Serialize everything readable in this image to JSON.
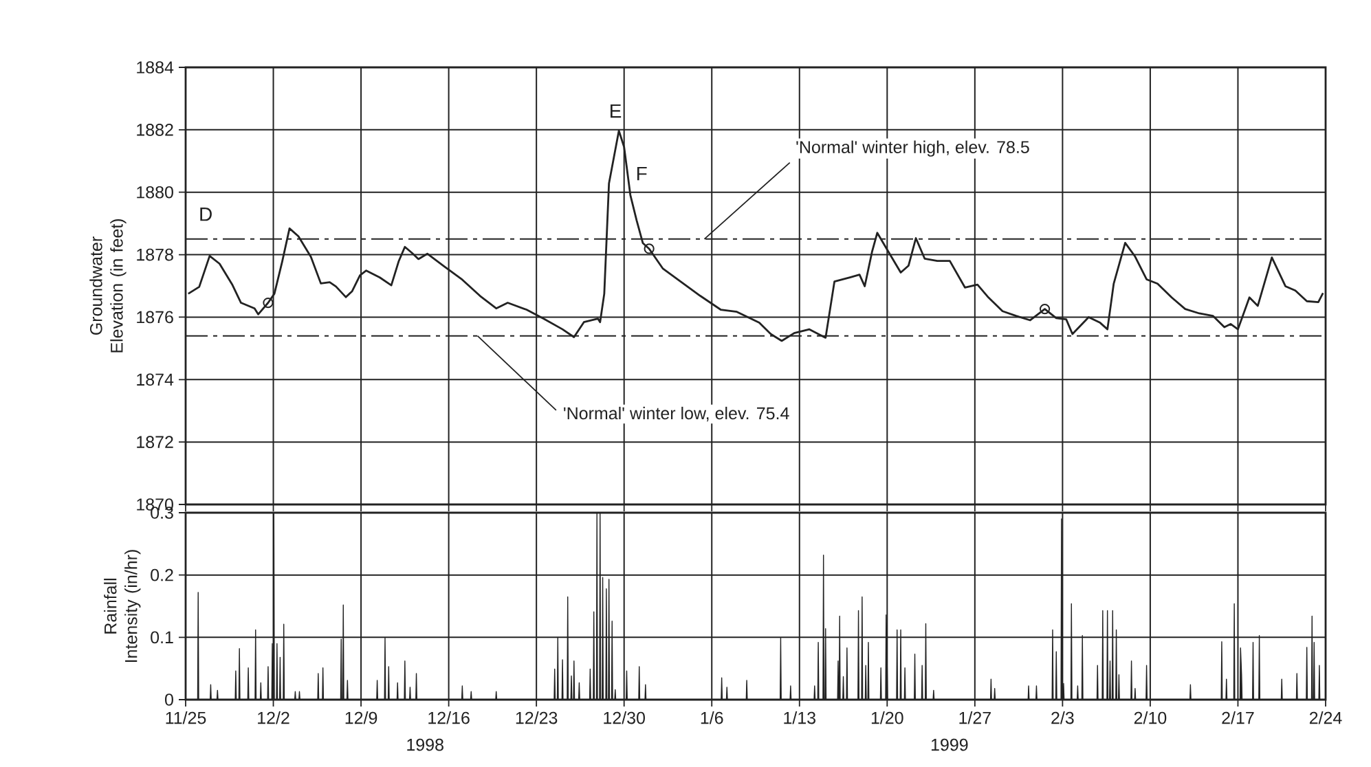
{
  "chart_data": [
    {
      "type": "line",
      "ylabel": "Groundwater Elevation (in feet)",
      "xlim": [
        "1998-11-25",
        "1999-02-24"
      ],
      "xticks": [
        {
          "value": "1998-11-25",
          "label": null
        },
        {
          "value": "1998-12-02",
          "label": null
        },
        {
          "value": "1998-12-09",
          "label": null
        },
        {
          "value": "1998-12-16",
          "label": null
        },
        {
          "value": "1998-12-23",
          "label": null
        },
        {
          "value": "1998-12-30",
          "label": null
        },
        {
          "value": "1999-01-06",
          "label": null
        },
        {
          "value": "1999-01-13",
          "label": null
        },
        {
          "value": "1999-01-20",
          "label": null
        },
        {
          "value": "1999-01-27",
          "label": null
        },
        {
          "value": "1999-02-03",
          "label": null
        },
        {
          "value": "1999-02-10",
          "label": null
        },
        {
          "value": "1999-02-17",
          "label": null
        },
        {
          "value": "1999-02-24",
          "label": null
        }
      ],
      "ylim": [
        1870,
        1884
      ],
      "yticks": [
        1870,
        1872,
        1874,
        1876,
        1878,
        1880,
        1882,
        1884
      ],
      "tick_labels": "y",
      "grid": true,
      "line_style": "solid",
      "series": [
        {
          "color": "#222222",
          "x": [
            "1998-11-25T05:00",
            "1998-11-26T02:00",
            "1998-11-26T22:00",
            "1998-11-27T17:00",
            "1998-11-28T17:00",
            "1998-11-29T10:00",
            "1998-11-30T12:00",
            "1998-11-30T19:00",
            "1998-12-01T14:00",
            "1998-12-02T02:00",
            "1998-12-02T17:00",
            "1998-12-03T07:00",
            "1998-12-04T00:00",
            "1998-12-05T00:00",
            "1998-12-05T19:00",
            "1998-12-06T12:00",
            "1998-12-07T00:00",
            "1998-12-07T19:00",
            "1998-12-08T07:00",
            "1998-12-08T22:00",
            "1998-12-09T10:00",
            "1998-12-10T12:00",
            "1998-12-11T10:00",
            "1998-12-12T00:00",
            "1998-12-12T12:00",
            "1998-12-13T02:00",
            "1998-12-13T14:00",
            "1998-12-14T07:00",
            "1998-12-15T14:00",
            "1998-12-17T02:00",
            "1998-12-18T12:00",
            "1998-12-19T19:00",
            "1998-12-20T17:00",
            "1998-12-22T05:00",
            "1998-12-23T14:00",
            "1998-12-25T02:00",
            "1998-12-26T00:00",
            "1998-12-26T19:00",
            "1998-12-27T22:00",
            "1998-12-28T02:00",
            "1998-12-28T10:00",
            "1998-12-28T19:00",
            "1998-12-29T14:00",
            "1998-12-30T00:00",
            "1998-12-30T12:00",
            "1998-12-31T00:00",
            "1998-12-31T12:00",
            "1999-01-01T00:00",
            "1999-01-02T02:00",
            "1999-01-03T14:00",
            "1999-01-05T02:00",
            "1999-01-06T17:00",
            "1999-01-08T00:00",
            "1999-01-09T19:00",
            "1999-01-10T17:00",
            "1999-01-11T14:00",
            "1999-01-12T14:00",
            "1999-01-13T19:00",
            "1999-01-15T02:00",
            "1999-01-15T19:00",
            "1999-01-17T02:00",
            "1999-01-17T19:00",
            "1999-01-18T05:00",
            "1999-01-18T19:00",
            "1999-01-19T05:00",
            "1999-01-20T00:00",
            "1999-01-21T02:00",
            "1999-01-21T17:00",
            "1999-01-22T07:00",
            "1999-01-23T00:00",
            "1999-01-24T00:00",
            "1999-01-25T00:00",
            "1999-01-26T05:00",
            "1999-01-27T05:00",
            "1999-01-28T02:00",
            "1999-01-29T05:00",
            "1999-01-30T07:00",
            "1999-01-31T10:00",
            "1999-02-01T14:00",
            "1999-02-02T12:00",
            "1999-02-03T07:00",
            "1999-02-03T19:00",
            "1999-02-05T02:00",
            "1999-02-06T00:00",
            "1999-02-06T14:00",
            "1999-02-07T02:00",
            "1999-02-08T00:00",
            "1999-02-08T19:00",
            "1999-02-09T17:00",
            "1999-02-10T14:00",
            "1999-02-11T17:00",
            "1999-02-12T19:00",
            "1999-02-13T22:00",
            "1999-02-15T00:00",
            "1999-02-15T22:00",
            "1999-02-16T10:00",
            "1999-02-17T00:00",
            "1999-02-17T22:00",
            "1999-02-18T14:00",
            "1999-02-19T17:00",
            "1999-02-20T19:00",
            "1999-02-21T14:00",
            "1999-02-22T12:00",
            "1999-02-23T10:00",
            "1999-02-23T19:00"
          ],
          "values": [
            1876.75,
            1876.97,
            1877.96,
            1877.71,
            1877.05,
            1876.46,
            1876.28,
            1876.09,
            1876.46,
            1876.75,
            1877.78,
            1878.84,
            1878.59,
            1877.93,
            1877.08,
            1877.12,
            1876.98,
            1876.64,
            1876.83,
            1877.34,
            1877.49,
            1877.27,
            1877.02,
            1877.78,
            1878.25,
            1878.05,
            1877.86,
            1878.03,
            1877.64,
            1877.2,
            1876.68,
            1876.28,
            1876.46,
            1876.24,
            1875.95,
            1875.61,
            1875.36,
            1875.84,
            1875.95,
            1875.84,
            1876.75,
            1880.28,
            1881.97,
            1881.45,
            1879.91,
            1879.1,
            1878.37,
            1878.19,
            1877.56,
            1877.12,
            1876.68,
            1876.24,
            1876.17,
            1875.82,
            1875.46,
            1875.24,
            1875.49,
            1875.61,
            1875.34,
            1877.14,
            1877.28,
            1877.36,
            1876.99,
            1878.09,
            1878.7,
            1878.16,
            1877.43,
            1877.65,
            1878.53,
            1877.87,
            1877.8,
            1877.8,
            1876.95,
            1877.04,
            1876.63,
            1876.19,
            1876.04,
            1875.9,
            1876.26,
            1875.97,
            1875.93,
            1875.46,
            1876.0,
            1875.82,
            1875.61,
            1877.07,
            1878.38,
            1877.94,
            1877.21,
            1877.07,
            1876.63,
            1876.26,
            1876.12,
            1876.04,
            1875.68,
            1875.78,
            1875.61,
            1876.63,
            1876.36,
            1877.91,
            1876.99,
            1876.85,
            1876.51,
            1876.48,
            1876.77
          ]
        },
        {
          "type": "scatter",
          "marker": "circle",
          "color": "#222222",
          "x": [
            "1998-12-01T14:00",
            "1999-01-01T00:00",
            "1999-02-01T14:00"
          ],
          "values": [
            1876.46,
            1878.19,
            1876.26
          ]
        }
      ],
      "ref_lines": [
        {
          "axis": "y",
          "value": 1878.5,
          "label": "'Normal' winter high, elev. 78.5",
          "line_style": "dashed",
          "color": "#222222"
        },
        {
          "axis": "y",
          "value": 1875.4,
          "label": "'Normal' winter low, elev. 75.4",
          "line_style": "dashed",
          "color": "#222222"
        }
      ],
      "annotations": [
        "D",
        "E",
        "F"
      ]
    },
    {
      "type": "area",
      "ylabel": "Rainfall Intensity (in/hr)",
      "xlim": [
        "1998-11-25",
        "1999-02-24"
      ],
      "xticks": [
        {
          "value": "1998-11-25",
          "label": "11/25"
        },
        {
          "value": "1998-12-02",
          "label": "12/2"
        },
        {
          "value": "1998-12-09",
          "label": "12/9"
        },
        {
          "value": "1998-12-16",
          "label": "12/16"
        },
        {
          "value": "1998-12-23",
          "label": "12/23"
        },
        {
          "value": "1998-12-30",
          "label": "12/30"
        },
        {
          "value": "1999-01-06",
          "label": "1/6"
        },
        {
          "value": "1999-01-13",
          "label": "1/13"
        },
        {
          "value": "1999-01-20",
          "label": "1/20"
        },
        {
          "value": "1999-01-27",
          "label": "1/27"
        },
        {
          "value": "1999-02-03",
          "label": "2/3"
        },
        {
          "value": "1999-02-10",
          "label": "2/10"
        },
        {
          "value": "1999-02-17",
          "label": "2/17"
        },
        {
          "value": "1999-02-24",
          "label": "2/24"
        }
      ],
      "ylim": [
        0,
        0.3
      ],
      "yticks": [
        0,
        0.1,
        0.2,
        0.3
      ],
      "grid": true,
      "series": [
        {
          "color": "#222222",
          "x": [
            "1998-11-25T23:00",
            "1998-11-26T00:00",
            "1998-11-26T01:00",
            "1998-11-26T23:00",
            "1998-11-27T00:00",
            "1998-11-27T01:00",
            "1998-11-27T12:00",
            "1998-11-27T13:00",
            "1998-11-27T14:00",
            "1998-11-28T23:00",
            "1998-11-29T00:00",
            "1998-11-29T01:00",
            "1998-11-29T06:00",
            "1998-11-29T07:00",
            "1998-11-29T08:00",
            "1998-11-29T23:00",
            "1998-11-30T00:00",
            "1998-11-30T01:00",
            "1998-11-30T13:00",
            "1998-11-30T14:00",
            "1998-11-30T15:00",
            "1998-11-30T23:00",
            "1998-12-01T00:00",
            "1998-12-01T01:00",
            "1998-12-01T13:00",
            "1998-12-01T14:00",
            "1998-12-01T15:00",
            "1998-12-01T21:00",
            "1998-12-01T22:00",
            "1998-12-01T23:00",
            "1998-12-02T00:00",
            "1998-12-02T01:00",
            "1998-12-02T02:00",
            "1998-12-02T06:00",
            "1998-12-02T07:00",
            "1998-12-02T08:00",
            "1998-12-02T12:00",
            "1998-12-02T13:00",
            "1998-12-02T14:00",
            "1998-12-02T19:00",
            "1998-12-02T20:00",
            "1998-12-02T21:00",
            "1998-12-03T17:00",
            "1998-12-03T18:00",
            "1998-12-03T19:00",
            "1998-12-04T01:00",
            "1998-12-04T02:00",
            "1998-12-04T03:00",
            "1998-12-05T13:00",
            "1998-12-05T14:00",
            "1998-12-05T15:00",
            "1998-12-05T22:00",
            "1998-12-05T23:00",
            "1998-12-06T00:00",
            "1998-12-07T09:00",
            "1998-12-07T10:00",
            "1998-12-07T11:00",
            "1998-12-07T13:00",
            "1998-12-07T14:00",
            "1998-12-07T15:00",
            "1998-12-07T21:00",
            "1998-12-07T22:00",
            "1998-12-07T23:00",
            "1998-12-10T06:00",
            "1998-12-10T07:00",
            "1998-12-10T08:00",
            "1998-12-10T21:00",
            "1998-12-10T22:00",
            "1998-12-10T23:00",
            "1998-12-11T04:00",
            "1998-12-11T05:00",
            "1998-12-11T06:00",
            "1998-12-11T21:00",
            "1998-12-11T22:00",
            "1998-12-11T23:00",
            "1998-12-12T11:00",
            "1998-12-12T12:00",
            "1998-12-12T13:00",
            "1998-12-12T21:00",
            "1998-12-12T22:00",
            "1998-12-12T23:00",
            "1998-12-13T09:00",
            "1998-12-13T10:00",
            "1998-12-13T11:00",
            "1998-12-17T01:00",
            "1998-12-17T02:00",
            "1998-12-17T03:00",
            "1998-12-17T18:00",
            "1998-12-17T19:00",
            "1998-12-17T20:00",
            "1998-12-19T18:00",
            "1998-12-19T19:00",
            "1998-12-19T20:00",
            "1998-12-24T10:00",
            "1998-12-24T11:00",
            "1998-12-24T12:00",
            "1998-12-24T16:00",
            "1998-12-24T17:00",
            "1998-12-24T18:00",
            "1998-12-25T01:00",
            "1998-12-25T02:00",
            "1998-12-25T03:00",
            "1998-12-25T11:00",
            "1998-12-25T12:00",
            "1998-12-25T13:00",
            "1998-12-25T18:00",
            "1998-12-25T19:00",
            "1998-12-25T20:00",
            "1998-12-25T23:00",
            "1998-12-26T00:00",
            "1998-12-26T01:00",
            "1998-12-26T09:00",
            "1998-12-26T10:00",
            "1998-12-26T11:00",
            "1998-12-27T06:00",
            "1998-12-27T07:00",
            "1998-12-27T08:00",
            "1998-12-27T13:00",
            "1998-12-27T14:00",
            "1998-12-27T15:00",
            "1998-12-27T19:00",
            "1998-12-27T20:00",
            "1998-12-27T21:00",
            "1998-12-28T01:00",
            "1998-12-28T02:00",
            "1998-12-28T03:00",
            "1998-12-28T06:00",
            "1998-12-28T07:00",
            "1998-12-28T08:00",
            "1998-12-28T13:00",
            "1998-12-28T14:00",
            "1998-12-28T15:00",
            "1998-12-28T18:00",
            "1998-12-28T19:00",
            "1998-12-28T20:00",
            "1998-12-29T00:00",
            "1998-12-29T01:00",
            "1998-12-29T02:00",
            "1998-12-29T06:00",
            "1998-12-29T07:00",
            "1998-12-29T08:00",
            "1998-12-30T04:00",
            "1998-12-30T05:00",
            "1998-12-30T06:00",
            "1998-12-31T04:00",
            "1998-12-31T05:00",
            "1998-12-31T06:00",
            "1998-12-31T16:00",
            "1998-12-31T17:00",
            "1998-12-31T18:00",
            "1999-01-06T18:00",
            "1999-01-06T19:00",
            "1999-01-06T20:00",
            "1999-01-07T04:00",
            "1999-01-07T05:00",
            "1999-01-07T06:00",
            "1999-01-08T18:00",
            "1999-01-08T19:00",
            "1999-01-08T20:00",
            "1999-01-11T11:00",
            "1999-01-11T12:00",
            "1999-01-11T13:00",
            "1999-01-12T06:00",
            "1999-01-12T07:00",
            "1999-01-12T08:00",
            "1999-01-14T04:00",
            "1999-01-14T05:00",
            "1999-01-14T06:00",
            "1999-01-14T11:00",
            "1999-01-14T12:00",
            "1999-01-14T13:00",
            "1999-01-14T21:00",
            "1999-01-14T22:00",
            "1999-01-14T23:00",
            "1999-01-15T01:00",
            "1999-01-15T02:00",
            "1999-01-15T03:00",
            "1999-01-16T01:00",
            "1999-01-16T02:00",
            "1999-01-16T03:00",
            "1999-01-16T04:00",
            "1999-01-16T05:00",
            "1999-01-16T06:00",
            "1999-01-16T11:00",
            "1999-01-16T12:00",
            "1999-01-16T13:00",
            "1999-01-16T18:00",
            "1999-01-16T19:00",
            "1999-01-16T20:00",
            "1999-01-17T16:00",
            "1999-01-17T17:00",
            "1999-01-17T18:00",
            "1999-01-17T23:00",
            "1999-01-18T00:00",
            "1999-01-18T01:00",
            "1999-01-18T06:00",
            "1999-01-18T07:00",
            "1999-01-18T08:00",
            "1999-01-18T11:00",
            "1999-01-18T12:00",
            "1999-01-18T13:00",
            "1999-01-19T11:00",
            "1999-01-19T12:00",
            "1999-01-19T13:00",
            "1999-01-19T21:00",
            "1999-01-19T22:00",
            "1999-01-20T00:00",
            "1999-01-20T01:00",
            "1999-01-20T18:00",
            "1999-01-20T19:00",
            "1999-01-20T20:00",
            "1999-01-21T01:00",
            "1999-01-21T02:00",
            "1999-01-21T03:00",
            "1999-01-21T09:00",
            "1999-01-21T10:00",
            "1999-01-21T11:00",
            "1999-01-22T04:00",
            "1999-01-22T05:00",
            "1999-01-22T06:00",
            "1999-01-22T18:00",
            "1999-01-22T19:00",
            "1999-01-22T20:00",
            "1999-01-23T01:00",
            "1999-01-23T02:00",
            "1999-01-23T03:00",
            "1999-01-23T16:00",
            "1999-01-23T17:00",
            "1999-01-23T18:00",
            "1999-01-28T06:00",
            "1999-01-28T07:00",
            "1999-01-28T08:00",
            "1999-01-28T13:00",
            "1999-01-28T14:00",
            "1999-01-28T15:00",
            "1999-01-31T06:00",
            "1999-01-31T07:00",
            "1999-01-31T08:00",
            "1999-01-31T21:00",
            "1999-01-31T22:00",
            "1999-01-31T23:00",
            "1999-02-02T04:00",
            "1999-02-02T05:00",
            "1999-02-02T06:00",
            "1999-02-02T11:00",
            "1999-02-02T12:00",
            "1999-02-02T13:00",
            "1999-02-02T21:00",
            "1999-02-02T22:00",
            "1999-02-02T23:00",
            "1999-02-03T01:00",
            "1999-02-03T02:00",
            "1999-02-03T03:00",
            "1999-02-03T16:00",
            "1999-02-03T17:00",
            "1999-02-03T18:00",
            "1999-02-04T04:00",
            "1999-02-04T05:00",
            "1999-02-04T06:00",
            "1999-02-04T13:00",
            "1999-02-04T14:00",
            "1999-02-04T15:00",
            "1999-02-05T18:00",
            "1999-02-05T19:00",
            "1999-02-05T20:00",
            "1999-02-06T04:00",
            "1999-02-06T05:00",
            "1999-02-06T06:00",
            "1999-02-06T13:00",
            "1999-02-06T14:00",
            "1999-02-06T15:00",
            "1999-02-06T18:00",
            "1999-02-06T19:00",
            "1999-02-06T20:00",
            "1999-02-06T23:00",
            "1999-02-07T00:00",
            "1999-02-07T01:00",
            "1999-02-07T06:00",
            "1999-02-07T07:00",
            "1999-02-07T08:00",
            "1999-02-07T11:00",
            "1999-02-07T12:00",
            "1999-02-07T13:00",
            "1999-02-08T11:00",
            "1999-02-08T12:00",
            "1999-02-08T13:00",
            "1999-02-08T18:00",
            "1999-02-08T19:00",
            "1999-02-08T20:00",
            "1999-02-09T16:00",
            "1999-02-09T17:00",
            "1999-02-09T18:00",
            "1999-02-13T04:00",
            "1999-02-13T05:00",
            "1999-02-13T06:00",
            "1999-02-15T16:00",
            "1999-02-15T17:00",
            "1999-02-15T18:00",
            "1999-02-16T01:00",
            "1999-02-16T02:00",
            "1999-02-16T03:00",
            "1999-02-16T16:00",
            "1999-02-16T17:00",
            "1999-02-16T18:00",
            "1999-02-17T04:00",
            "1999-02-17T05:00",
            "1999-02-17T07:00",
            "1999-02-17T08:00",
            "1999-02-18T04:00",
            "1999-02-18T05:00",
            "1999-02-18T06:00",
            "1999-02-18T16:00",
            "1999-02-18T17:00",
            "1999-02-18T18:00",
            "1999-02-20T11:00",
            "1999-02-20T12:00",
            "1999-02-20T13:00",
            "1999-02-21T16:00",
            "1999-02-21T17:00",
            "1999-02-21T18:00",
            "1999-02-22T11:00",
            "1999-02-22T12:00",
            "1999-02-22T13:00",
            "1999-02-22T21:00",
            "1999-02-22T22:00",
            "1999-02-22T23:00",
            "1999-02-23T01:00",
            "1999-02-23T02:00",
            "1999-02-23T03:00",
            "1999-02-23T11:00",
            "1999-02-23T12:00",
            "1999-02-23T13:00"
          ],
          "values": [
            0,
            0.172,
            0,
            0,
            0.024,
            0,
            0,
            0.015,
            0,
            0,
            0.046,
            0,
            0,
            0.082,
            0,
            0,
            0.051,
            0,
            0,
            0.112,
            0,
            0,
            0.027,
            0,
            0,
            0.053,
            0,
            0,
            0.09,
            0,
            0,
            0.3,
            0,
            0,
            0.09,
            0,
            0,
            0.068,
            0,
            0,
            0.121,
            0,
            0,
            0.013,
            0,
            0,
            0.013,
            0,
            0,
            0.042,
            0,
            0,
            0.051,
            0,
            0,
            0.097,
            0,
            0,
            0.152,
            0,
            0,
            0.031,
            0,
            0,
            0.031,
            0,
            0,
            0.099,
            0,
            0,
            0.053,
            0,
            0,
            0.027,
            0,
            0,
            0.062,
            0,
            0,
            0.02,
            0,
            0,
            0.042,
            0,
            0,
            0.022,
            0,
            0,
            0.013,
            0,
            0,
            0.013,
            0,
            0,
            0.049,
            0,
            0,
            0.1,
            0,
            0,
            0.064,
            0,
            0,
            0.165,
            0,
            0,
            0.038,
            0,
            0,
            0.062,
            0,
            0,
            0.027,
            0,
            0,
            0.049,
            0,
            0,
            0.141,
            0,
            0,
            0.3,
            0,
            0,
            0.3,
            0,
            0,
            0.196,
            0,
            0,
            0.178,
            0,
            0,
            0.193,
            0,
            0,
            0.126,
            0,
            0,
            0.016,
            0,
            0,
            0.046,
            0,
            0,
            0.053,
            0,
            0,
            0.024,
            0,
            0,
            0.035,
            0,
            0,
            0.02,
            0,
            0,
            0.031,
            0,
            0,
            0.099,
            0,
            0,
            0.022,
            0,
            0,
            0.022,
            0,
            0,
            0.092,
            0,
            0,
            0.232,
            0,
            0,
            0.114,
            0,
            0,
            0.062,
            0,
            0,
            0.134,
            0,
            0,
            0.037,
            0,
            0,
            0.083,
            0,
            0,
            0.143,
            0,
            0,
            0.165,
            0,
            0,
            0.055,
            0,
            0,
            0.092,
            0,
            0,
            0.051,
            0,
            0,
            0.136,
            0.055,
            0,
            0,
            0.112,
            0,
            0,
            0.112,
            0,
            0,
            0.051,
            0,
            0,
            0.073,
            0,
            0,
            0.055,
            0,
            0,
            0.122,
            0,
            0,
            0.015,
            0,
            0,
            0.033,
            0,
            0,
            0.018,
            0,
            0,
            0.022,
            0,
            0,
            0.022,
            0,
            0,
            0.112,
            0,
            0,
            0.077,
            0,
            0,
            0.29,
            0,
            0,
            0.026,
            0,
            0,
            0.154,
            0,
            0,
            0.022,
            0,
            0,
            0.103,
            0,
            0,
            0.055,
            0,
            0,
            0.143,
            0,
            0,
            0.143,
            0,
            0,
            0.062,
            0,
            0,
            0.143,
            0,
            0,
            0.112,
            0,
            0,
            0.04,
            0,
            0,
            0.062,
            0,
            0,
            0.018,
            0,
            0,
            0.055,
            0,
            0,
            0.024,
            0,
            0,
            0.093,
            0,
            0,
            0.033,
            0,
            0,
            0.154,
            0,
            0,
            0.083,
            0.04,
            0,
            0,
            0.092,
            0,
            0,
            0.103,
            0,
            0,
            0.033,
            0,
            0,
            0.042,
            0,
            0,
            0.084,
            0,
            0,
            0.134,
            0,
            0,
            0.092,
            0,
            0,
            0.055,
            0
          ]
        }
      ],
      "annotations": [
        "1998",
        "1999"
      ]
    }
  ]
}
